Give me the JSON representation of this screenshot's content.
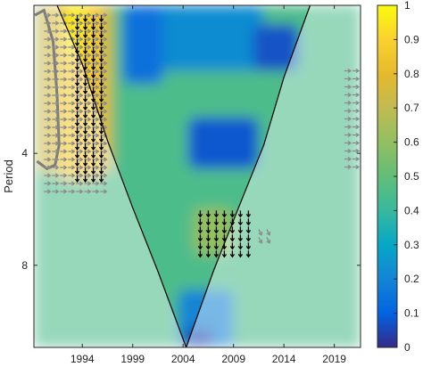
{
  "chart_data": {
    "type": "heatmap",
    "ylabel": "Period",
    "x_range": [
      1989.2,
      2021.6
    ],
    "x_ticks": [
      1994,
      1999,
      2004,
      2009,
      2014,
      2019
    ],
    "x_tick_labels": [
      "1994",
      "1999",
      "2004",
      "2009",
      "2014",
      "2019"
    ],
    "y_scale": "log2",
    "y_range": [
      1.6,
      13.3
    ],
    "y_ticks": [
      4,
      8
    ],
    "y_tick_labels": [
      "4",
      "8"
    ],
    "colormap": "parula",
    "colorbar_range": [
      0,
      1
    ],
    "colorbar_ticks": [
      0,
      0.1,
      0.2,
      0.3,
      0.4,
      0.5,
      0.6,
      0.7,
      0.8,
      0.9,
      1
    ],
    "colorbar_tick_labels": [
      "0",
      "0.1",
      "0.2",
      "0.3",
      "0.4",
      "0.5",
      "0.6",
      "0.7",
      "0.8",
      "0.9",
      "1"
    ],
    "cone_of_influence": {
      "x": [
        1991.5,
        1994,
        1996.5,
        1999,
        2001.5,
        2004.3,
        2007,
        2009.5,
        2012,
        2014,
        2016.6
      ],
      "period": [
        1.6,
        2.3,
        3.7,
        5.6,
        8.3,
        13.3,
        8.3,
        5.6,
        3.8,
        2.5,
        1.6
      ]
    },
    "coherence_regions": [
      {
        "x": [
          1989.5,
          1997
        ],
        "period": [
          1.6,
          4.5
        ],
        "value": 0.75
      },
      {
        "x": [
          1991.8,
          1995.8
        ],
        "period": [
          1.6,
          4.7
        ],
        "value": 0.88
      },
      {
        "x": [
          1992.5,
          1994.3
        ],
        "period": [
          1.6,
          2.2
        ],
        "value": 0.97
      },
      {
        "x": [
          1989.2,
          2021.6
        ],
        "period": [
          1.6,
          13.3
        ],
        "value": 0.45
      },
      {
        "x": [
          1998.5,
          2012
        ],
        "period": [
          1.6,
          2.4
        ],
        "value": 0.22
      },
      {
        "x": [
          1998,
          2002
        ],
        "period": [
          1.6,
          2.6
        ],
        "value": 0.14
      },
      {
        "x": [
          2011,
          2015.5
        ],
        "period": [
          1.8,
          2.4
        ],
        "value": 0.07
      },
      {
        "x": [
          2004.5,
          2011.5
        ],
        "period": [
          3.2,
          4.4
        ],
        "value": 0.08
      },
      {
        "x": [
          2005,
          2009
        ],
        "period": [
          5.6,
          7.5
        ],
        "value": 0.6
      },
      {
        "x": [
          2003.5,
          2009
        ],
        "period": [
          9.3,
          13.3
        ],
        "value": 0.2
      },
      {
        "x": [
          2004,
          2007
        ],
        "period": [
          11.8,
          13.3
        ],
        "value": 0.05
      }
    ],
    "significance_contour": {
      "x": [
        1989.3,
        1990.2,
        1991.1,
        1991.5,
        1991.7,
        1991.3,
        1990.5,
        1989.5
      ],
      "period": [
        1.7,
        1.65,
        2.0,
        2.8,
        3.8,
        4.3,
        4.4,
        4.2
      ]
    },
    "phase_arrows": [
      {
        "x_range": [
          1990.2,
          1996.2
        ],
        "period_range": [
          1.7,
          5.1
        ],
        "direction": "right",
        "inside_coi": false
      },
      {
        "x_range": [
          1993.5,
          1996.5
        ],
        "period_range": [
          1.7,
          4.6
        ],
        "direction": "down",
        "inside_coi": true
      },
      {
        "x_range": [
          2005.7,
          2010.8
        ],
        "period_range": [
          5.7,
          7.4
        ],
        "direction": "down",
        "inside_coi": true
      },
      {
        "x_range": [
          2011.5,
          2013
        ],
        "period_range": [
          6.4,
          7.0
        ],
        "direction": "down-right",
        "inside_coi": false
      },
      {
        "x_range": [
          2020,
          2021
        ],
        "period_range": [
          2.4,
          4.5
        ],
        "direction": "right",
        "inside_coi": false
      }
    ]
  }
}
